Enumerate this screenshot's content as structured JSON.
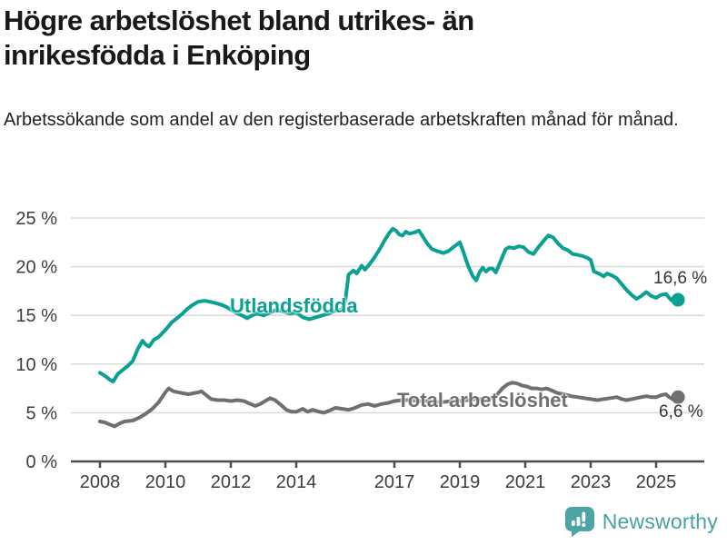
{
  "chart_data": {
    "type": "line",
    "title": "Högre arbetslöshet bland utrikes- än inrikesfödda i Enköping",
    "subtitle": "Arbetssökande som andel av den registerbaserade arbetskraften månad för månad.",
    "xlabel": "",
    "ylabel": "",
    "x_axis": {
      "unit": "year",
      "min": 2008,
      "max": 2025.9,
      "ticks": [
        2008,
        2010,
        2012,
        2014,
        2017,
        2019,
        2021,
        2023,
        2025
      ]
    },
    "y_axis": {
      "min": 0,
      "max": 25,
      "tick_suffix": " %",
      "ticks": [
        0,
        5,
        10,
        15,
        20,
        25
      ]
    },
    "grid": "horizontal",
    "legend": "inline-labels",
    "series": [
      {
        "name": "Utlandsfödda",
        "color": "#0aa092",
        "end_value": 16.6,
        "end_label": "16,6 %",
        "points": [
          [
            2008.0,
            9.1
          ],
          [
            2008.15,
            8.8
          ],
          [
            2008.3,
            8.4
          ],
          [
            2008.4,
            8.2
          ],
          [
            2008.55,
            9.0
          ],
          [
            2008.7,
            9.4
          ],
          [
            2008.85,
            9.8
          ],
          [
            2009.0,
            10.3
          ],
          [
            2009.15,
            11.5
          ],
          [
            2009.3,
            12.4
          ],
          [
            2009.4,
            12.0
          ],
          [
            2009.5,
            11.8
          ],
          [
            2009.65,
            12.5
          ],
          [
            2009.8,
            12.8
          ],
          [
            2010.0,
            13.5
          ],
          [
            2010.2,
            14.3
          ],
          [
            2010.35,
            14.7
          ],
          [
            2010.5,
            15.1
          ],
          [
            2010.65,
            15.6
          ],
          [
            2010.8,
            16.0
          ],
          [
            2011.0,
            16.4
          ],
          [
            2011.2,
            16.5
          ],
          [
            2011.35,
            16.4
          ],
          [
            2011.5,
            16.3
          ],
          [
            2011.7,
            16.1
          ],
          [
            2011.85,
            15.9
          ],
          [
            2012.0,
            15.6
          ],
          [
            2012.2,
            15.2
          ],
          [
            2012.4,
            14.9
          ],
          [
            2012.5,
            14.7
          ],
          [
            2012.65,
            15.0
          ],
          [
            2012.8,
            15.2
          ],
          [
            2013.0,
            15.0
          ],
          [
            2013.2,
            15.3
          ],
          [
            2013.4,
            15.6
          ],
          [
            2013.6,
            15.4
          ],
          [
            2013.8,
            15.2
          ],
          [
            2014.0,
            15.3
          ],
          [
            2014.2,
            14.8
          ],
          [
            2014.4,
            14.6
          ],
          [
            2014.6,
            14.8
          ],
          [
            2014.8,
            15.0
          ],
          [
            2015.0,
            15.2
          ],
          [
            2015.2,
            15.5
          ],
          [
            2015.4,
            15.6
          ],
          [
            2015.5,
            16.5
          ],
          [
            2015.6,
            19.2
          ],
          [
            2015.75,
            19.6
          ],
          [
            2015.85,
            19.3
          ],
          [
            2016.0,
            20.1
          ],
          [
            2016.1,
            19.7
          ],
          [
            2016.25,
            20.3
          ],
          [
            2016.4,
            21.0
          ],
          [
            2016.55,
            21.8
          ],
          [
            2016.7,
            22.7
          ],
          [
            2016.85,
            23.5
          ],
          [
            2016.95,
            23.9
          ],
          [
            2017.05,
            23.7
          ],
          [
            2017.15,
            23.3
          ],
          [
            2017.25,
            23.2
          ],
          [
            2017.35,
            23.6
          ],
          [
            2017.45,
            23.4
          ],
          [
            2017.6,
            23.5
          ],
          [
            2017.75,
            23.7
          ],
          [
            2017.85,
            23.2
          ],
          [
            2018.0,
            22.4
          ],
          [
            2018.15,
            21.8
          ],
          [
            2018.3,
            21.6
          ],
          [
            2018.5,
            21.4
          ],
          [
            2018.65,
            21.6
          ],
          [
            2018.8,
            22.0
          ],
          [
            2019.0,
            22.5
          ],
          [
            2019.1,
            21.6
          ],
          [
            2019.25,
            20.1
          ],
          [
            2019.4,
            19.0
          ],
          [
            2019.5,
            18.6
          ],
          [
            2019.6,
            19.4
          ],
          [
            2019.7,
            19.9
          ],
          [
            2019.8,
            19.5
          ],
          [
            2019.9,
            19.8
          ],
          [
            2020.0,
            19.8
          ],
          [
            2020.1,
            19.4
          ],
          [
            2020.25,
            20.6
          ],
          [
            2020.4,
            21.8
          ],
          [
            2020.5,
            22.0
          ],
          [
            2020.65,
            21.9
          ],
          [
            2020.8,
            22.1
          ],
          [
            2020.95,
            22.0
          ],
          [
            2021.1,
            21.5
          ],
          [
            2021.25,
            21.3
          ],
          [
            2021.4,
            22.0
          ],
          [
            2021.55,
            22.6
          ],
          [
            2021.7,
            23.2
          ],
          [
            2021.85,
            23.0
          ],
          [
            2022.0,
            22.4
          ],
          [
            2022.15,
            21.9
          ],
          [
            2022.3,
            21.7
          ],
          [
            2022.45,
            21.3
          ],
          [
            2022.6,
            21.2
          ],
          [
            2022.75,
            21.1
          ],
          [
            2022.9,
            20.9
          ],
          [
            2023.0,
            20.7
          ],
          [
            2023.1,
            19.5
          ],
          [
            2023.25,
            19.3
          ],
          [
            2023.4,
            19.0
          ],
          [
            2023.5,
            19.3
          ],
          [
            2023.65,
            19.1
          ],
          [
            2023.8,
            18.8
          ],
          [
            2023.95,
            18.2
          ],
          [
            2024.1,
            17.6
          ],
          [
            2024.25,
            17.1
          ],
          [
            2024.4,
            16.7
          ],
          [
            2024.55,
            17.0
          ],
          [
            2024.7,
            17.4
          ],
          [
            2024.85,
            17.0
          ],
          [
            2025.0,
            16.8
          ],
          [
            2025.15,
            17.1
          ],
          [
            2025.3,
            17.2
          ],
          [
            2025.45,
            16.6
          ],
          [
            2025.55,
            16.4
          ],
          [
            2025.67,
            16.6
          ]
        ]
      },
      {
        "name": "Total arbetslöshet",
        "color": "#6f6f6f",
        "end_value": 6.6,
        "end_label": "6,6 %",
        "points": [
          [
            2008.0,
            4.1
          ],
          [
            2008.15,
            4.0
          ],
          [
            2008.3,
            3.8
          ],
          [
            2008.45,
            3.6
          ],
          [
            2008.6,
            3.9
          ],
          [
            2008.75,
            4.1
          ],
          [
            2009.0,
            4.2
          ],
          [
            2009.2,
            4.5
          ],
          [
            2009.4,
            4.9
          ],
          [
            2009.6,
            5.4
          ],
          [
            2009.8,
            6.1
          ],
          [
            2010.0,
            7.1
          ],
          [
            2010.1,
            7.5
          ],
          [
            2010.25,
            7.2
          ],
          [
            2010.4,
            7.1
          ],
          [
            2010.55,
            7.0
          ],
          [
            2010.7,
            6.9
          ],
          [
            2010.85,
            7.0
          ],
          [
            2011.0,
            7.1
          ],
          [
            2011.1,
            7.2
          ],
          [
            2011.25,
            6.8
          ],
          [
            2011.4,
            6.4
          ],
          [
            2011.6,
            6.3
          ],
          [
            2011.8,
            6.3
          ],
          [
            2012.0,
            6.2
          ],
          [
            2012.2,
            6.3
          ],
          [
            2012.4,
            6.2
          ],
          [
            2012.6,
            5.9
          ],
          [
            2012.75,
            5.7
          ],
          [
            2012.9,
            5.9
          ],
          [
            2013.05,
            6.2
          ],
          [
            2013.2,
            6.5
          ],
          [
            2013.35,
            6.3
          ],
          [
            2013.5,
            5.9
          ],
          [
            2013.7,
            5.3
          ],
          [
            2013.85,
            5.1
          ],
          [
            2014.0,
            5.1
          ],
          [
            2014.2,
            5.4
          ],
          [
            2014.35,
            5.1
          ],
          [
            2014.5,
            5.3
          ],
          [
            2014.7,
            5.1
          ],
          [
            2014.85,
            5.0
          ],
          [
            2015.0,
            5.2
          ],
          [
            2015.2,
            5.5
          ],
          [
            2015.4,
            5.4
          ],
          [
            2015.6,
            5.3
          ],
          [
            2015.8,
            5.5
          ],
          [
            2016.0,
            5.8
          ],
          [
            2016.2,
            5.9
          ],
          [
            2016.4,
            5.7
          ],
          [
            2016.6,
            5.9
          ],
          [
            2016.8,
            6.0
          ],
          [
            2017.0,
            6.2
          ],
          [
            2017.25,
            6.3
          ],
          [
            2017.5,
            6.3
          ],
          [
            2017.75,
            6.2
          ],
          [
            2018.0,
            6.2
          ],
          [
            2018.25,
            6.1
          ],
          [
            2018.5,
            6.1
          ],
          [
            2018.75,
            6.2
          ],
          [
            2019.0,
            6.2
          ],
          [
            2019.25,
            6.3
          ],
          [
            2019.5,
            6.4
          ],
          [
            2019.75,
            6.4
          ],
          [
            2020.0,
            6.5
          ],
          [
            2020.15,
            6.9
          ],
          [
            2020.3,
            7.5
          ],
          [
            2020.45,
            7.9
          ],
          [
            2020.6,
            8.1
          ],
          [
            2020.75,
            8.0
          ],
          [
            2020.9,
            7.8
          ],
          [
            2021.05,
            7.7
          ],
          [
            2021.2,
            7.5
          ],
          [
            2021.35,
            7.5
          ],
          [
            2021.5,
            7.4
          ],
          [
            2021.65,
            7.5
          ],
          [
            2021.8,
            7.3
          ],
          [
            2022.0,
            7.0
          ],
          [
            2022.2,
            6.9
          ],
          [
            2022.4,
            6.7
          ],
          [
            2022.6,
            6.6
          ],
          [
            2022.8,
            6.5
          ],
          [
            2023.0,
            6.4
          ],
          [
            2023.2,
            6.3
          ],
          [
            2023.4,
            6.4
          ],
          [
            2023.6,
            6.5
          ],
          [
            2023.8,
            6.6
          ],
          [
            2023.95,
            6.4
          ],
          [
            2024.1,
            6.3
          ],
          [
            2024.25,
            6.4
          ],
          [
            2024.4,
            6.5
          ],
          [
            2024.55,
            6.6
          ],
          [
            2024.7,
            6.7
          ],
          [
            2024.85,
            6.6
          ],
          [
            2025.0,
            6.6
          ],
          [
            2025.15,
            6.8
          ],
          [
            2025.3,
            6.9
          ],
          [
            2025.4,
            6.6
          ],
          [
            2025.5,
            6.4
          ],
          [
            2025.67,
            6.6
          ]
        ]
      }
    ]
  },
  "footer": {
    "brand": "Newsworthy"
  },
  "colors": {
    "accent_teal": "#0aa092",
    "series_gray": "#6f6f6f",
    "logo_teal": "#4ba5a2",
    "grid": "#dbdbdb",
    "axis": "#4d4d4d",
    "tick_text": "#3d3d3d",
    "title_text": "#191919"
  }
}
